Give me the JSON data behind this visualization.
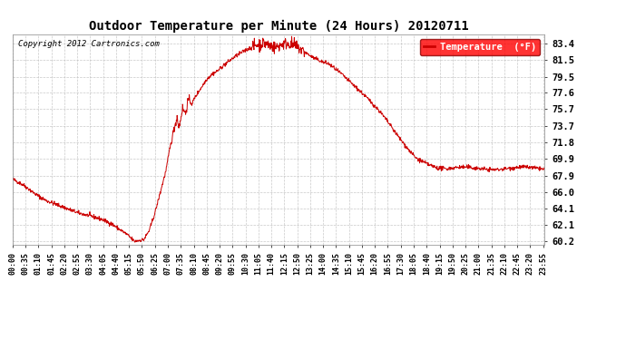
{
  "title": "Outdoor Temperature per Minute (24 Hours) 20120711",
  "copyright": "Copyright 2012 Cartronics.com",
  "legend_label": "Temperature  (°F)",
  "line_color": "#cc0000",
  "background_color": "#ffffff",
  "grid_color": "#bbbbbb",
  "yticks": [
    60.2,
    62.1,
    64.1,
    66.0,
    67.9,
    69.9,
    71.8,
    73.7,
    75.7,
    77.6,
    79.5,
    81.5,
    83.4
  ],
  "ylim": [
    59.8,
    84.5
  ],
  "num_minutes": 1440,
  "x_tick_interval": 35,
  "x_tick_labels": [
    "00:00",
    "00:35",
    "01:10",
    "01:45",
    "02:20",
    "02:55",
    "03:30",
    "04:05",
    "04:40",
    "05:15",
    "05:50",
    "06:25",
    "07:00",
    "07:35",
    "08:10",
    "08:45",
    "09:20",
    "09:55",
    "10:30",
    "11:05",
    "11:40",
    "12:15",
    "12:50",
    "13:25",
    "14:00",
    "14:35",
    "15:10",
    "15:45",
    "16:20",
    "16:55",
    "17:30",
    "18:05",
    "18:40",
    "19:15",
    "19:50",
    "20:25",
    "21:00",
    "21:35",
    "22:10",
    "22:45",
    "23:20",
    "23:55"
  ],
  "keypoints": [
    [
      0,
      67.5
    ],
    [
      30,
      66.8
    ],
    [
      60,
      65.8
    ],
    [
      90,
      65.0
    ],
    [
      120,
      64.5
    ],
    [
      150,
      64.0
    ],
    [
      180,
      63.5
    ],
    [
      210,
      63.2
    ],
    [
      240,
      62.8
    ],
    [
      270,
      62.2
    ],
    [
      310,
      61.0
    ],
    [
      330,
      60.2
    ],
    [
      340,
      60.3
    ],
    [
      355,
      60.4
    ],
    [
      370,
      61.5
    ],
    [
      385,
      63.5
    ],
    [
      400,
      66.0
    ],
    [
      415,
      68.5
    ],
    [
      425,
      71.0
    ],
    [
      435,
      73.0
    ],
    [
      445,
      74.8
    ],
    [
      450,
      73.5
    ],
    [
      460,
      75.8
    ],
    [
      468,
      75.2
    ],
    [
      475,
      76.8
    ],
    [
      485,
      76.3
    ],
    [
      495,
      77.2
    ],
    [
      510,
      78.2
    ],
    [
      525,
      79.2
    ],
    [
      540,
      79.8
    ],
    [
      555,
      80.2
    ],
    [
      570,
      80.8
    ],
    [
      585,
      81.3
    ],
    [
      600,
      81.8
    ],
    [
      615,
      82.2
    ],
    [
      630,
      82.6
    ],
    [
      645,
      82.9
    ],
    [
      660,
      83.2
    ],
    [
      670,
      83.35
    ],
    [
      680,
      83.4
    ],
    [
      690,
      83.3
    ],
    [
      700,
      83.1
    ],
    [
      710,
      82.9
    ],
    [
      720,
      83.1
    ],
    [
      730,
      83.3
    ],
    [
      740,
      83.4
    ],
    [
      750,
      83.35
    ],
    [
      760,
      83.2
    ],
    [
      770,
      83.0
    ],
    [
      780,
      82.7
    ],
    [
      790,
      82.4
    ],
    [
      800,
      82.1
    ],
    [
      810,
      81.8
    ],
    [
      820,
      81.6
    ],
    [
      830,
      81.4
    ],
    [
      840,
      81.2
    ],
    [
      855,
      81.0
    ],
    [
      870,
      80.5
    ],
    [
      890,
      79.8
    ],
    [
      910,
      79.0
    ],
    [
      930,
      78.2
    ],
    [
      950,
      77.4
    ],
    [
      970,
      76.5
    ],
    [
      990,
      75.6
    ],
    [
      1010,
      74.5
    ],
    [
      1030,
      73.3
    ],
    [
      1050,
      72.1
    ],
    [
      1070,
      71.0
    ],
    [
      1090,
      70.0
    ],
    [
      1110,
      69.5
    ],
    [
      1130,
      69.1
    ],
    [
      1150,
      68.8
    ],
    [
      1170,
      68.7
    ],
    [
      1190,
      68.8
    ],
    [
      1210,
      68.9
    ],
    [
      1230,
      68.9
    ],
    [
      1250,
      68.8
    ],
    [
      1270,
      68.7
    ],
    [
      1290,
      68.6
    ],
    [
      1310,
      68.6
    ],
    [
      1330,
      68.7
    ],
    [
      1350,
      68.8
    ],
    [
      1370,
      68.9
    ],
    [
      1390,
      68.9
    ],
    [
      1410,
      68.8
    ],
    [
      1430,
      68.7
    ],
    [
      1439,
      68.6
    ]
  ]
}
